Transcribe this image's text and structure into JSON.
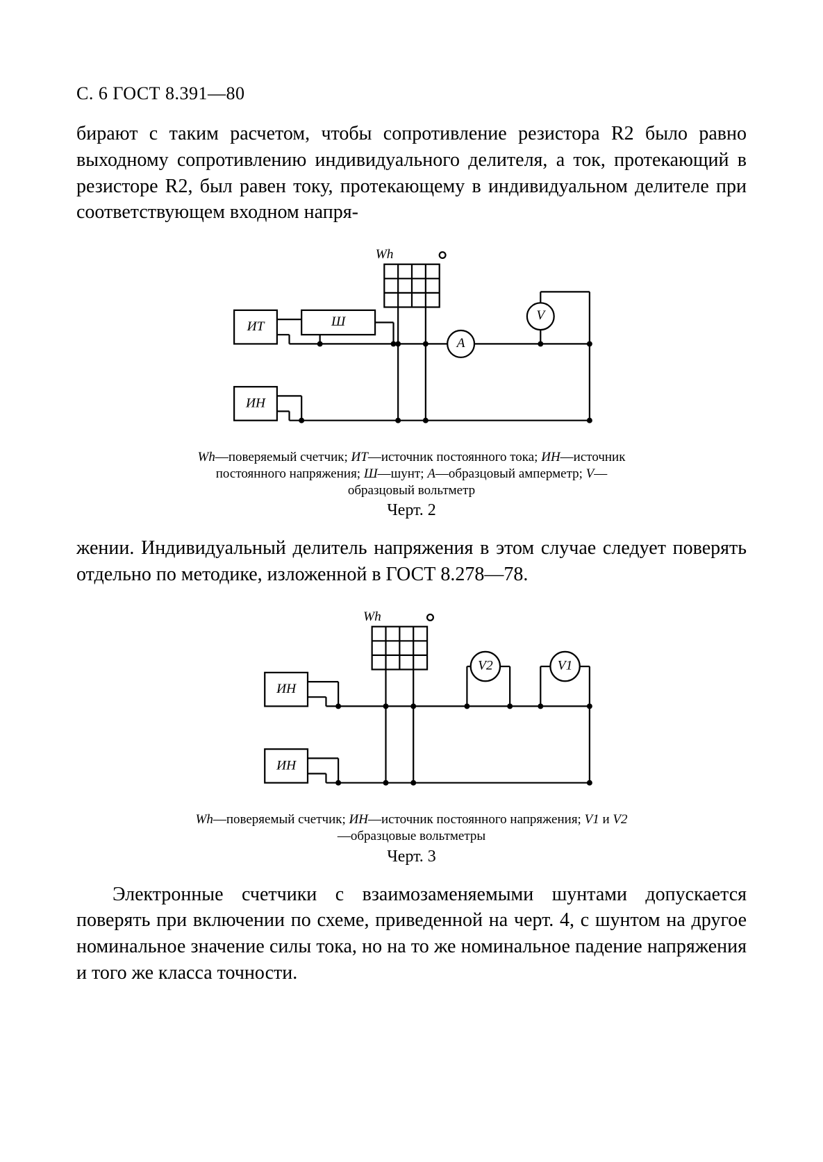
{
  "header": "С. 6 ГОСТ 8.391—80",
  "para1": "бирают с таким расчетом, чтобы сопротивление резистора R2 было равно выходному сопротивлению индивидуального делителя, а ток, протекающий в резисторе R2, был равен току, протекающему в индивидуальном делителе при соответствующем входном напря-",
  "para2": "жении. Индивидуальный делитель напряжения в этом случае следует поверять отдельно по методике, изложенной в ГОСТ 8.278—78.",
  "para3": "Электронные счетчики с взаимозаменяемыми шунтами допускается поверять при включении по схеме, приведенной на черт. 4, с шунтом на другое номинальное значение силы тока, но на то же номинальное падение напряжения и того же класса точности.",
  "fig1": {
    "labels": {
      "Wh": "Wh",
      "IT": "ИТ",
      "IN": "ИН",
      "Sh": "Ш",
      "A": "A",
      "V": "V"
    },
    "legend_html": "<span class='it'>Wh</span>—поверяемый счетчик; <span class='it'>ИТ</span>—источник постоянного тока; <span class='it'>ИН</span>—источник постоянного напряжения; <span class='it'>Ш</span>—шунт; <span class='it'>A</span>—образцовый амперметр; <span class='it'>V</span>—образцовый вольтметр",
    "caption": "Черт. 2",
    "style": {
      "stroke": "#000000",
      "stroke_width": 2.5,
      "font_size": 22,
      "font_family": "Times New Roman"
    }
  },
  "fig2": {
    "labels": {
      "Wh": "Wh",
      "IN": "ИН",
      "V1": "V1",
      "V2": "V2"
    },
    "legend_html": "<span class='it'>Wh</span>—поверяемый счетчик; <span class='it'>ИН</span>—источник постоянного напряжения; <span class='it'>V1</span> и <span class='it'>V2</span>—образцовые вольтметры",
    "caption": "Черт. 3",
    "style": {
      "stroke": "#000000",
      "stroke_width": 2.5,
      "font_size": 22,
      "font_family": "Times New Roman"
    }
  }
}
